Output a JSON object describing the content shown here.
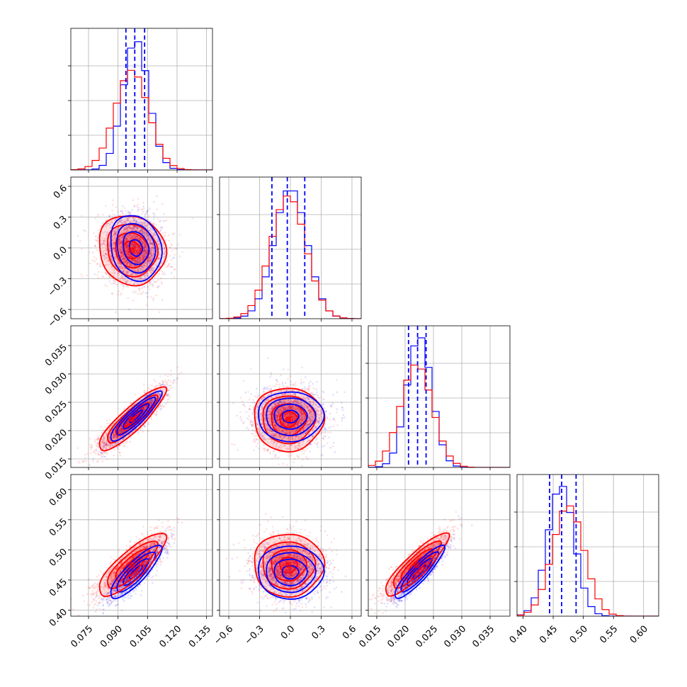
{
  "chart_data": {
    "type": "corner",
    "colors": {
      "blue": "#0000ff",
      "red": "#ff0000"
    },
    "grid": true,
    "parameters": [
      {
        "range": [
          0.066,
          0.138
        ],
        "ticks": [
          "0.075",
          "0.090",
          "0.105",
          "0.120",
          "0.135"
        ],
        "blue_mean": 0.099,
        "red_mean": 0.097,
        "blue_sd": 0.0065,
        "red_sd": 0.0085,
        "quantiles": [
          0.094,
          0.0985,
          0.1035
        ]
      },
      {
        "range": [
          -0.69,
          0.69
        ],
        "ticks": [
          "−0.6",
          "−0.3",
          "0.0",
          "0.3",
          "0.6"
        ],
        "blue_mean": 0.0,
        "red_mean": -0.02,
        "blue_sd": 0.16,
        "red_sd": 0.17,
        "quantiles": [
          -0.18,
          -0.03,
          0.14
        ]
      },
      {
        "range": [
          0.0135,
          0.0385
        ],
        "ticks": [
          "0.015",
          "0.020",
          "0.025",
          "0.030",
          "0.035"
        ],
        "blue_mean": 0.0225,
        "red_mean": 0.022,
        "blue_sd": 0.0022,
        "red_sd": 0.0028,
        "quantiles": [
          0.0206,
          0.0222,
          0.0237
        ]
      },
      {
        "range": [
          0.39,
          0.625
        ],
        "ticks": [
          "0.40",
          "0.45",
          "0.50",
          "0.55",
          "0.60"
        ],
        "blue_mean": 0.463,
        "red_mean": 0.475,
        "blue_sd": 0.022,
        "red_sd": 0.026,
        "quantiles": [
          0.444,
          0.464,
          0.488
        ]
      }
    ],
    "correlations": {
      "1_0": {
        "blue": -0.15,
        "red": -0.1
      },
      "2_0": {
        "blue": 0.9,
        "red": 0.88
      },
      "2_1": {
        "blue": 0.0,
        "red": 0.0
      },
      "3_0": {
        "blue": 0.85,
        "red": 0.82
      },
      "3_1": {
        "blue": 0.0,
        "red": 0.0
      },
      "3_2": {
        "blue": 0.9,
        "red": 0.88
      }
    }
  }
}
